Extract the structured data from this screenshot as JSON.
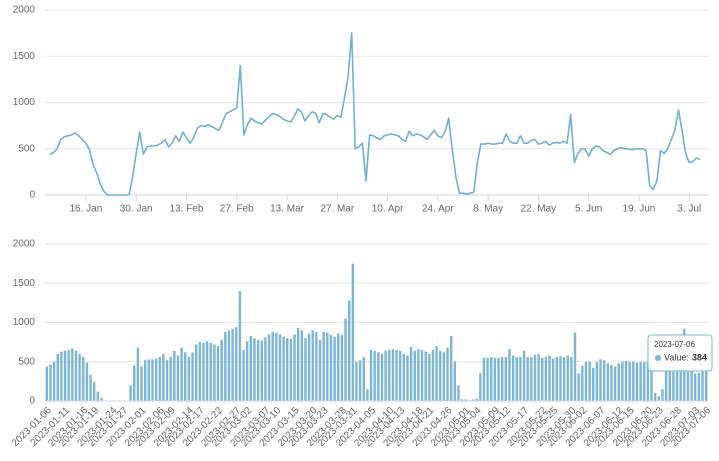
{
  "chart_data": [
    {
      "type": "line",
      "color": "#72b0cc",
      "grid": true,
      "xlim": [
        0,
        181
      ],
      "ylim": [
        0,
        2000
      ],
      "yticks": [
        0,
        500,
        1000,
        1500,
        2000
      ],
      "xticks": [
        {
          "value": 10,
          "label": "16. Jan"
        },
        {
          "value": 24,
          "label": "30. Jan"
        },
        {
          "value": 38,
          "label": "13. Feb"
        },
        {
          "value": 52,
          "label": "27. Feb"
        },
        {
          "value": 66,
          "label": "13. Mar"
        },
        {
          "value": 80,
          "label": "27. Mar"
        },
        {
          "value": 94,
          "label": "10. Apr"
        },
        {
          "value": 108,
          "label": "24. Apr"
        },
        {
          "value": 122,
          "label": "8. May"
        },
        {
          "value": 136,
          "label": "22. May"
        },
        {
          "value": 150,
          "label": "5. Jun"
        },
        {
          "value": 164,
          "label": "19. Jun"
        },
        {
          "value": 178,
          "label": "3. Jul"
        }
      ],
      "x": [
        0,
        1,
        2,
        3,
        4,
        5,
        6,
        7,
        8,
        9,
        10,
        11,
        12,
        13,
        14,
        15,
        16,
        17,
        18,
        19,
        20,
        21,
        22,
        23,
        24,
        25,
        26,
        27,
        28,
        29,
        30,
        31,
        32,
        33,
        34,
        35,
        36,
        37,
        38,
        39,
        40,
        41,
        42,
        43,
        44,
        45,
        46,
        47,
        48,
        49,
        50,
        51,
        52,
        53,
        54,
        55,
        56,
        57,
        58,
        59,
        60,
        61,
        62,
        63,
        64,
        65,
        66,
        67,
        68,
        69,
        70,
        71,
        72,
        73,
        74,
        75,
        76,
        77,
        78,
        79,
        80,
        81,
        82,
        83,
        84,
        85,
        86,
        87,
        88,
        89,
        90,
        91,
        92,
        93,
        94,
        95,
        96,
        97,
        98,
        99,
        100,
        101,
        102,
        103,
        104,
        105,
        106,
        107,
        108,
        109,
        110,
        111,
        112,
        113,
        114,
        115,
        116,
        117,
        118,
        119,
        120,
        121,
        122,
        123,
        124,
        125,
        126,
        127,
        128,
        129,
        130,
        131,
        132,
        133,
        134,
        135,
        136,
        137,
        138,
        139,
        140,
        141,
        142,
        143,
        144,
        145,
        146,
        147,
        148,
        149,
        150,
        151,
        152,
        153,
        154,
        155,
        156,
        157,
        158,
        159,
        160,
        161,
        162,
        163,
        164,
        165,
        166,
        167,
        168,
        169,
        170,
        171,
        172,
        173,
        174,
        175,
        176,
        177,
        178,
        179,
        180,
        181
      ],
      "values": [
        440,
        460,
        500,
        600,
        630,
        640,
        650,
        670,
        640,
        600,
        560,
        490,
        330,
        240,
        120,
        40,
        0,
        0,
        0,
        0,
        0,
        0,
        0,
        200,
        450,
        680,
        440,
        520,
        530,
        530,
        540,
        560,
        600,
        520,
        560,
        640,
        580,
        680,
        620,
        560,
        620,
        720,
        750,
        740,
        760,
        740,
        720,
        700,
        780,
        880,
        900,
        920,
        940,
        1400,
        650,
        760,
        830,
        800,
        780,
        770,
        810,
        850,
        880,
        870,
        850,
        820,
        800,
        790,
        850,
        930,
        900,
        800,
        860,
        900,
        880,
        780,
        880,
        870,
        840,
        820,
        860,
        840,
        1050,
        1280,
        1750,
        500,
        520,
        560,
        150,
        650,
        640,
        620,
        600,
        640,
        650,
        660,
        650,
        640,
        600,
        580,
        690,
        640,
        660,
        650,
        630,
        600,
        650,
        700,
        640,
        620,
        680,
        830,
        500,
        200,
        20,
        20,
        10,
        20,
        30,
        350,
        550,
        550,
        560,
        550,
        550,
        560,
        560,
        660,
        580,
        560,
        560,
        640,
        560,
        560,
        590,
        600,
        550,
        560,
        580,
        540,
        560,
        570,
        560,
        580,
        560,
        870,
        350,
        450,
        500,
        500,
        420,
        500,
        530,
        520,
        480,
        460,
        440,
        480,
        500,
        510,
        500,
        500,
        490,
        500,
        500,
        500,
        480,
        100,
        60,
        150,
        480,
        450,
        500,
        600,
        700,
        920,
        700,
        450,
        350,
        360,
        400,
        384
      ]
    },
    {
      "type": "bar",
      "color": "#7cb5d5",
      "grid": true,
      "ylim": [
        0,
        2000
      ],
      "yticks": [
        0,
        500,
        1000,
        1500,
        2000
      ],
      "categories": [
        "2023-01-06",
        null,
        null,
        null,
        null,
        "2023-01-11",
        null,
        null,
        null,
        null,
        "2023-01-16",
        null,
        null,
        "2023-01-19",
        null,
        null,
        null,
        null,
        "2023-01-24",
        null,
        null,
        "2023-01-27",
        null,
        null,
        null,
        null,
        "2023-02-01",
        null,
        null,
        null,
        null,
        "2023-02-06",
        null,
        null,
        "2023-02-09",
        null,
        null,
        null,
        null,
        "2023-02-14",
        null,
        null,
        "2023-02-17",
        null,
        null,
        null,
        null,
        "2023-02-22",
        null,
        null,
        null,
        null,
        "2023-02-27",
        null,
        null,
        "2023-03-02",
        null,
        null,
        null,
        null,
        "2023-03-07",
        null,
        null,
        "2023-03-10",
        null,
        null,
        null,
        null,
        "2023-03-15",
        null,
        null,
        null,
        null,
        "2023-03-20",
        null,
        null,
        "2023-03-23",
        null,
        null,
        null,
        null,
        "2023-03-28",
        null,
        null,
        "2023-03-31",
        null,
        null,
        null,
        null,
        "2023-04-05",
        null,
        null,
        null,
        null,
        "2023-04-10",
        null,
        null,
        "2023-04-13",
        null,
        null,
        null,
        null,
        "2023-04-18",
        null,
        null,
        "2023-04-21",
        null,
        null,
        null,
        null,
        "2023-04-26",
        null,
        null,
        null,
        null,
        "2023-05-01",
        null,
        null,
        "2023-05-04",
        null,
        null,
        null,
        null,
        "2023-05-09",
        null,
        null,
        "2023-05-12",
        null,
        null,
        null,
        null,
        "2023-05-17",
        null,
        null,
        null,
        null,
        "2023-05-22",
        null,
        null,
        "2023-05-25",
        null,
        null,
        null,
        null,
        "2023-05-30",
        null,
        null,
        "2023-06-02",
        null,
        null,
        null,
        null,
        "2023-06-07",
        null,
        null,
        null,
        null,
        "2023-06-12",
        null,
        null,
        "2023-06-15",
        null,
        null,
        null,
        null,
        "2023-06-20",
        null,
        null,
        "2023-06-23",
        null,
        null,
        null,
        null,
        "2023-06-28",
        null,
        null,
        null,
        null,
        "2023-07-03",
        null,
        null,
        "2023-07-06"
      ],
      "values": [
        440,
        460,
        500,
        600,
        630,
        640,
        650,
        670,
        640,
        600,
        560,
        490,
        330,
        240,
        120,
        40,
        0,
        0,
        0,
        0,
        0,
        0,
        0,
        200,
        450,
        680,
        440,
        520,
        530,
        530,
        540,
        560,
        600,
        520,
        560,
        640,
        580,
        680,
        620,
        560,
        620,
        720,
        750,
        740,
        760,
        740,
        720,
        700,
        780,
        880,
        900,
        920,
        940,
        1400,
        650,
        760,
        830,
        800,
        780,
        770,
        810,
        850,
        880,
        870,
        850,
        820,
        800,
        790,
        850,
        930,
        900,
        800,
        860,
        900,
        880,
        780,
        880,
        870,
        840,
        820,
        860,
        840,
        1050,
        1280,
        1750,
        500,
        520,
        560,
        150,
        650,
        640,
        620,
        600,
        640,
        650,
        660,
        650,
        640,
        600,
        580,
        690,
        640,
        660,
        650,
        630,
        600,
        650,
        700,
        640,
        620,
        680,
        830,
        500,
        200,
        20,
        20,
        10,
        20,
        30,
        350,
        550,
        550,
        560,
        550,
        550,
        560,
        560,
        660,
        580,
        560,
        560,
        640,
        560,
        560,
        590,
        600,
        550,
        560,
        580,
        540,
        560,
        570,
        560,
        580,
        560,
        870,
        350,
        450,
        500,
        500,
        420,
        500,
        530,
        520,
        480,
        460,
        440,
        480,
        500,
        510,
        500,
        500,
        490,
        500,
        500,
        500,
        480,
        100,
        60,
        150,
        480,
        450,
        500,
        600,
        700,
        920,
        700,
        450,
        350,
        360,
        400,
        384
      ],
      "tooltip": {
        "date": "2023-07-06",
        "label": "Value:",
        "value": 384
      }
    }
  ]
}
